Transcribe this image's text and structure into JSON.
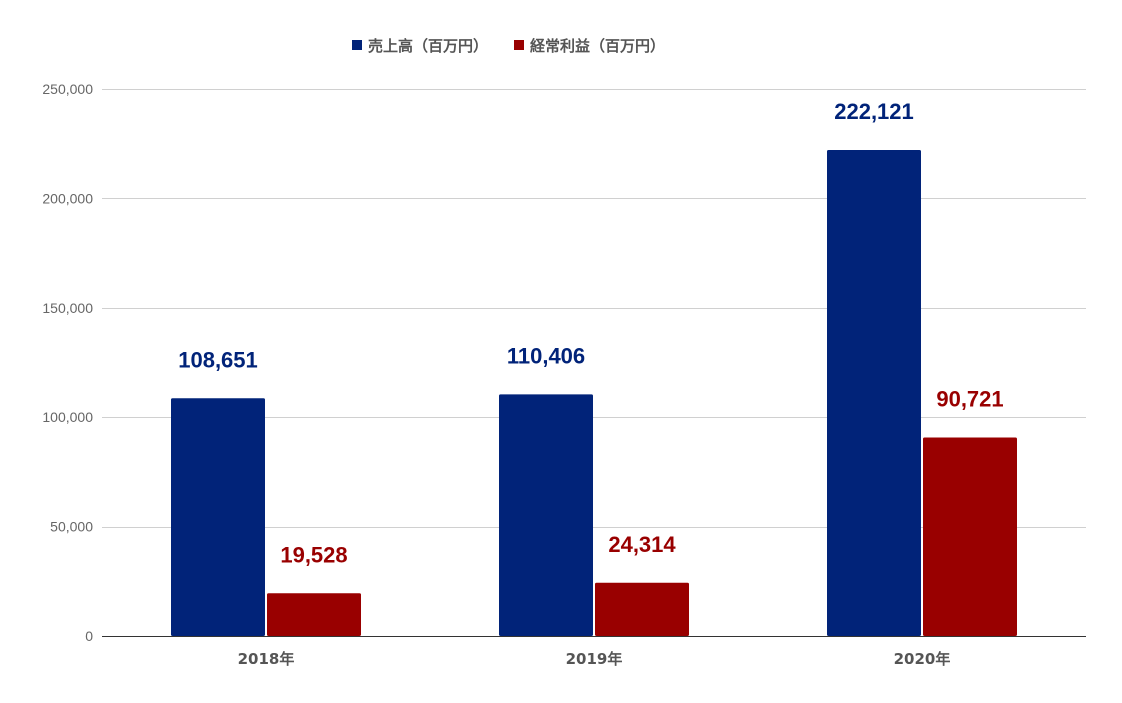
{
  "chart_data": {
    "type": "bar",
    "categories": [
      "2018年",
      "2019年",
      "2020年"
    ],
    "series": [
      {
        "name": "売上高（百万円）",
        "values": [
          108651,
          110406,
          222121
        ],
        "color": "#012379"
      },
      {
        "name": "経常利益（百万円）",
        "values": [
          19528,
          24314,
          90721
        ],
        "color": "#990000"
      }
    ],
    "data_labels": [
      [
        "108,651",
        "110,406",
        "222,121"
      ],
      [
        "19,528",
        "24,314",
        "90,721"
      ]
    ],
    "y_ticks": [
      0,
      50000,
      100000,
      150000,
      200000,
      250000
    ],
    "y_tick_labels": [
      "0",
      "50,000",
      "100,000",
      "150,000",
      "200,000",
      "250,000"
    ],
    "ylim": [
      0,
      250000
    ],
    "grid": true,
    "legend_position": "top",
    "title": "",
    "xlabel": "",
    "ylabel": ""
  }
}
